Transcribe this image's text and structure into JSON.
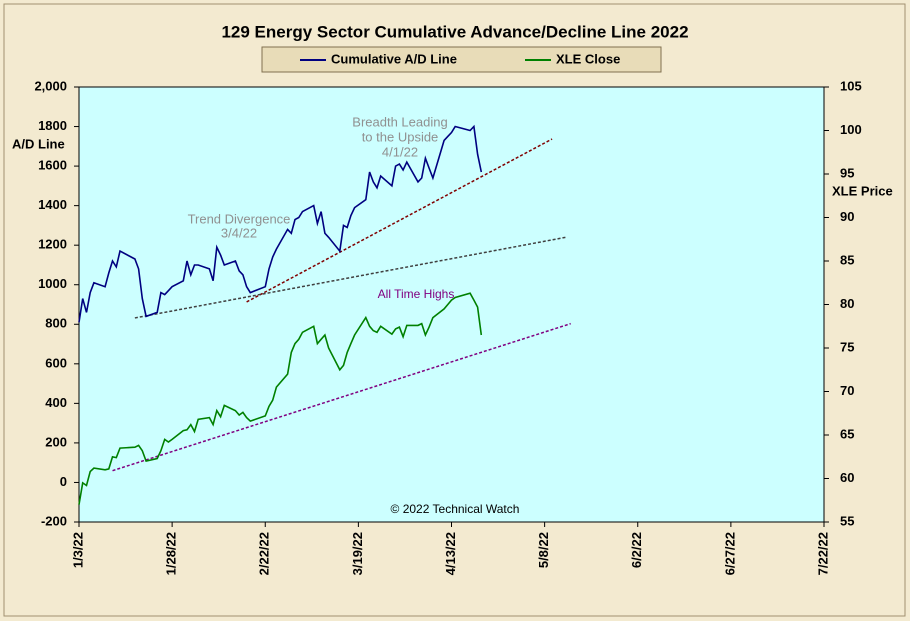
{
  "chart_data": {
    "type": "line",
    "title": "129 Energy Sector Cumulative Advance/Decline Line 2022",
    "y_label": "A/D Line",
    "y2_label": "XLE Price",
    "legend": "top",
    "x": [
      "2022-01-03",
      "2022-01-04",
      "2022-01-05",
      "2022-01-06",
      "2022-01-07",
      "2022-01-10",
      "2022-01-11",
      "2022-01-12",
      "2022-01-13",
      "2022-01-14",
      "2022-01-18",
      "2022-01-19",
      "2022-01-20",
      "2022-01-21",
      "2022-01-24",
      "2022-01-25",
      "2022-01-26",
      "2022-01-27",
      "2022-01-28",
      "2022-01-31",
      "2022-02-01",
      "2022-02-02",
      "2022-02-03",
      "2022-02-04",
      "2022-02-07",
      "2022-02-08",
      "2022-02-09",
      "2022-02-10",
      "2022-02-11",
      "2022-02-14",
      "2022-02-15",
      "2022-02-16",
      "2022-02-17",
      "2022-02-18",
      "2022-02-22",
      "2022-02-23",
      "2022-02-24",
      "2022-02-25",
      "2022-02-28",
      "2022-03-01",
      "2022-03-02",
      "2022-03-03",
      "2022-03-04",
      "2022-03-07",
      "2022-03-08",
      "2022-03-09",
      "2022-03-10",
      "2022-03-11",
      "2022-03-14",
      "2022-03-15",
      "2022-03-16",
      "2022-03-17",
      "2022-03-18",
      "2022-03-21",
      "2022-03-22",
      "2022-03-23",
      "2022-03-24",
      "2022-03-25",
      "2022-03-28",
      "2022-03-29",
      "2022-03-30",
      "2022-03-31",
      "2022-04-01",
      "2022-04-04",
      "2022-04-05",
      "2022-04-06",
      "2022-04-07",
      "2022-04-08",
      "2022-04-11",
      "2022-04-12",
      "2022-04-13",
      "2022-04-14",
      "2022-04-18",
      "2022-04-19",
      "2022-04-20",
      "2022-04-21"
    ],
    "series": [
      {
        "name": "Cumulative A/D Line",
        "color": "#000080",
        "axis": "y",
        "values": [
          810,
          930,
          860,
          960,
          1010,
          990,
          1060,
          1120,
          1090,
          1170,
          1130,
          1080,
          930,
          840,
          860,
          960,
          950,
          970,
          990,
          1020,
          1120,
          1050,
          1100,
          1100,
          1080,
          1020,
          1190,
          1150,
          1100,
          1120,
          1070,
          1050,
          990,
          960,
          990,
          1080,
          1140,
          1180,
          1280,
          1260,
          1330,
          1340,
          1370,
          1400,
          1310,
          1370,
          1260,
          1240,
          1170,
          1300,
          1290,
          1350,
          1390,
          1430,
          1570,
          1520,
          1490,
          1550,
          1500,
          1600,
          1610,
          1580,
          1620,
          1520,
          1540,
          1640,
          1590,
          1540,
          1730,
          1750,
          1770,
          1800,
          1780,
          1800,
          1660,
          1570
        ]
      },
      {
        "name": "XLE Close",
        "color": "#008000",
        "axis": "y2",
        "values": [
          57,
          59.5,
          59.2,
          60.8,
          61.2,
          61,
          61.1,
          62.5,
          62.4,
          63.5,
          63.6,
          63.8,
          63.2,
          62,
          62.3,
          63.2,
          64.5,
          64.2,
          64.5,
          65.5,
          65.6,
          66.2,
          65.4,
          66.8,
          67,
          66.2,
          67.8,
          67.1,
          68.4,
          67.8,
          67.3,
          67.6,
          67,
          66.6,
          67.2,
          68.3,
          69,
          70.5,
          72,
          74.5,
          75.5,
          76,
          76.8,
          77.5,
          75.5,
          76,
          76.5,
          75,
          72.5,
          73,
          74.5,
          75.5,
          76.5,
          78.5,
          77.5,
          77,
          76.8,
          77.5,
          76.6,
          77.2,
          77.4,
          76.3,
          77.6,
          77.6,
          77.8,
          76.5,
          77.4,
          78.5,
          79.5,
          80,
          80.5,
          80.8,
          81.3,
          80.5,
          79.7,
          76.5
        ]
      }
    ],
    "trendlines": [
      {
        "color": "#800000",
        "axis": "y",
        "x": [
          "2022-02-17",
          "2022-05-10"
        ],
        "values": [
          913,
          1737
        ]
      },
      {
        "color": "#404040",
        "axis": "y",
        "x": [
          "2022-01-18",
          "2022-05-14"
        ],
        "values": [
          832,
          1241
        ]
      },
      {
        "color": "#800080",
        "axis": "y2",
        "x": [
          "2022-01-12",
          "2022-05-15"
        ],
        "values": [
          60.9,
          77.8
        ]
      }
    ],
    "annotations": [
      {
        "lines": [
          "Breadth Leading",
          "to the Upside",
          "4/1/22"
        ],
        "color": "#909090"
      },
      {
        "lines": [
          "Trend Divergence",
          "3/4/22"
        ],
        "color": "#909090"
      },
      {
        "lines": [
          "All Time Highs"
        ],
        "color": "#800080"
      },
      {
        "lines": [
          "© 2022 Technical Watch"
        ],
        "color": "#000000"
      }
    ],
    "xlim": [
      "2022-01-03",
      "2022-07-22"
    ],
    "xticks": [
      {
        "value": "2022-01-03",
        "label": "1/3/22"
      },
      {
        "value": "2022-01-28",
        "label": "1/28/22"
      },
      {
        "value": "2022-02-22",
        "label": "2/22/22"
      },
      {
        "value": "2022-03-19",
        "label": "3/19/22"
      },
      {
        "value": "2022-04-13",
        "label": "4/13/22"
      },
      {
        "value": "2022-05-08",
        "label": "5/8/22"
      },
      {
        "value": "2022-06-02",
        "label": "6/2/22"
      },
      {
        "value": "2022-06-27",
        "label": "6/27/22"
      },
      {
        "value": "2022-07-22",
        "label": "7/22/22"
      }
    ],
    "ylim": [
      -200,
      2000
    ],
    "yticks": [
      -200,
      0,
      200,
      400,
      600,
      800,
      1000,
      1200,
      1400,
      1600,
      1800,
      {
        "value": 2000,
        "label": "2,000"
      }
    ],
    "y2lim": [
      55,
      105
    ],
    "y2ticks": [
      55,
      60,
      65,
      70,
      75,
      80,
      85,
      90,
      95,
      100,
      105
    ]
  }
}
